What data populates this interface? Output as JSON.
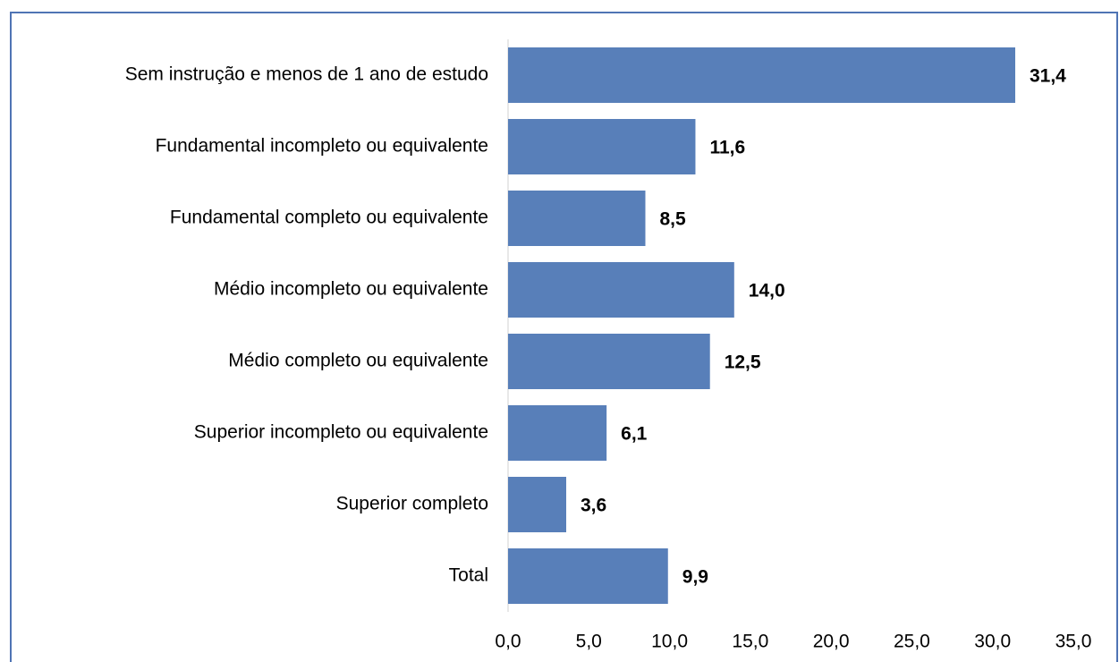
{
  "chart_data": {
    "type": "bar",
    "orientation": "horizontal",
    "categories": [
      "Sem instrução e menos de 1 ano de estudo",
      "Fundamental incompleto ou equivalente",
      "Fundamental completo ou equivalente",
      "Médio incompleto ou equivalente",
      "Médio completo ou equivalente",
      "Superior incompleto ou equivalente",
      "Superior completo",
      "Total"
    ],
    "values": [
      31.4,
      11.6,
      8.5,
      14.0,
      12.5,
      6.1,
      3.6,
      9.9
    ],
    "value_labels": [
      "31,4",
      "11,6",
      "8,5",
      "14,0",
      "12,5",
      "6,1",
      "3,6",
      "9,9"
    ],
    "color": "#587fb9",
    "xlim": [
      0,
      35
    ],
    "xticks": [
      {
        "value": 0,
        "label": "0,0"
      },
      {
        "value": 5,
        "label": "5,0"
      },
      {
        "value": 10,
        "label": "10,0"
      },
      {
        "value": 15,
        "label": "15,0"
      },
      {
        "value": 20,
        "label": "20,0"
      },
      {
        "value": 25,
        "label": "25,0"
      },
      {
        "value": 30,
        "label": "30,0"
      },
      {
        "value": 35,
        "label": "35,0"
      }
    ],
    "grid": false
  }
}
